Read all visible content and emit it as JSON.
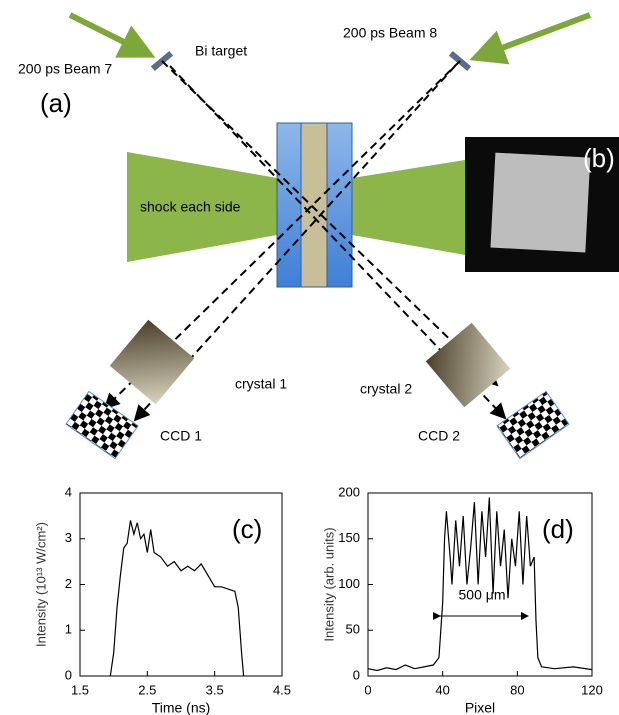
{
  "diagram": {
    "beam_left": "200 ps Beam 7",
    "target": "Bi target",
    "beam_right": "200 ps Beam 8",
    "panel_a": "(a)",
    "shock": "shock each side",
    "panel_b": "(b)",
    "crystal_left": "crystal 1",
    "crystal_right": "crystal 2",
    "ccd_left": "CCD 1",
    "ccd_right": "CCD 2"
  },
  "chart_data": [
    {
      "type": "line",
      "panel_label": "(c)",
      "x_label": "Time (ns)",
      "y_label": "Intensity (10¹³ W/cm²)",
      "color": "#000000",
      "x": [
        1.95,
        2.0,
        2.05,
        2.1,
        2.15,
        2.2,
        2.25,
        2.3,
        2.35,
        2.4,
        2.45,
        2.5,
        2.55,
        2.6,
        2.7,
        2.8,
        2.9,
        3.0,
        3.1,
        3.2,
        3.3,
        3.4,
        3.5,
        3.6,
        3.7,
        3.8,
        3.85,
        3.9,
        3.93
      ],
      "values": [
        0,
        0.5,
        1.5,
        2.2,
        2.8,
        2.9,
        3.4,
        3.1,
        3.35,
        3.0,
        3.1,
        2.7,
        3.2,
        2.7,
        2.6,
        2.4,
        2.5,
        2.3,
        2.4,
        2.3,
        2.45,
        2.2,
        1.95,
        1.95,
        1.9,
        1.85,
        1.5,
        0.5,
        0
      ],
      "xlim": [
        1.5,
        4.5
      ],
      "xticks": [
        1.5,
        2.5,
        3.5,
        4.5
      ],
      "ylim": [
        0,
        4
      ],
      "yticks": [
        0,
        1,
        2,
        3,
        4
      ]
    },
    {
      "type": "line",
      "panel_label": "(d)",
      "x_label": "Pixel",
      "y_label": "Intensity (arb. units)",
      "annotation": "500 μm",
      "color": "#000000",
      "x": [
        0,
        5,
        10,
        15,
        20,
        25,
        30,
        35,
        38,
        40,
        41,
        42,
        44,
        45,
        47,
        49,
        51,
        53,
        55,
        57,
        59,
        61,
        63,
        65,
        67,
        69,
        71,
        73,
        75,
        77,
        79,
        81,
        83,
        85,
        87,
        89,
        90,
        91,
        93,
        100,
        110,
        120
      ],
      "values": [
        8,
        6,
        9,
        7,
        12,
        8,
        10,
        12,
        20,
        80,
        150,
        180,
        130,
        100,
        170,
        120,
        175,
        100,
        140,
        190,
        100,
        180,
        130,
        195,
        90,
        180,
        120,
        160,
        85,
        150,
        120,
        180,
        100,
        175,
        120,
        130,
        60,
        20,
        10,
        8,
        10,
        7
      ],
      "xlim": [
        0,
        120
      ],
      "xticks": [
        0,
        40,
        80,
        120
      ],
      "ylim": [
        0,
        200
      ],
      "yticks": [
        0,
        50,
        100,
        150,
        200
      ]
    }
  ]
}
